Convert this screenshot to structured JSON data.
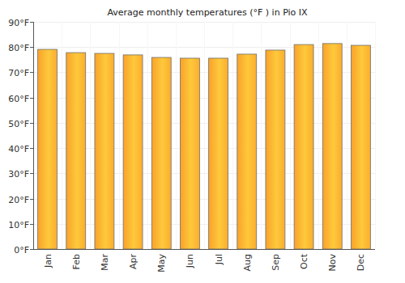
{
  "chart_data": {
    "type": "bar",
    "title": "Average monthly temperatures (°F ) in Pio IX",
    "categories": [
      "Jan",
      "Feb",
      "Mar",
      "Apr",
      "May",
      "Jun",
      "Jul",
      "Aug",
      "Sep",
      "Oct",
      "Nov",
      "Dec"
    ],
    "values": [
      79.1,
      77.8,
      77.5,
      76.9,
      75.9,
      75.6,
      75.6,
      77.2,
      78.8,
      81.0,
      81.4,
      80.7
    ],
    "color": "#f9a22b",
    "ylim": [
      0,
      90
    ],
    "yticks": [
      {
        "value": 0,
        "label": "0°F"
      },
      {
        "value": 10,
        "label": "10°F"
      },
      {
        "value": 20,
        "label": "20°F"
      },
      {
        "value": 30,
        "label": "30°F"
      },
      {
        "value": 40,
        "label": "40°F"
      },
      {
        "value": 50,
        "label": "50°F"
      },
      {
        "value": 60,
        "label": "60°F"
      },
      {
        "value": 70,
        "label": "70°F"
      },
      {
        "value": 80,
        "label": "80°F"
      },
      {
        "value": 90,
        "label": "90°F"
      }
    ],
    "grid": true
  }
}
